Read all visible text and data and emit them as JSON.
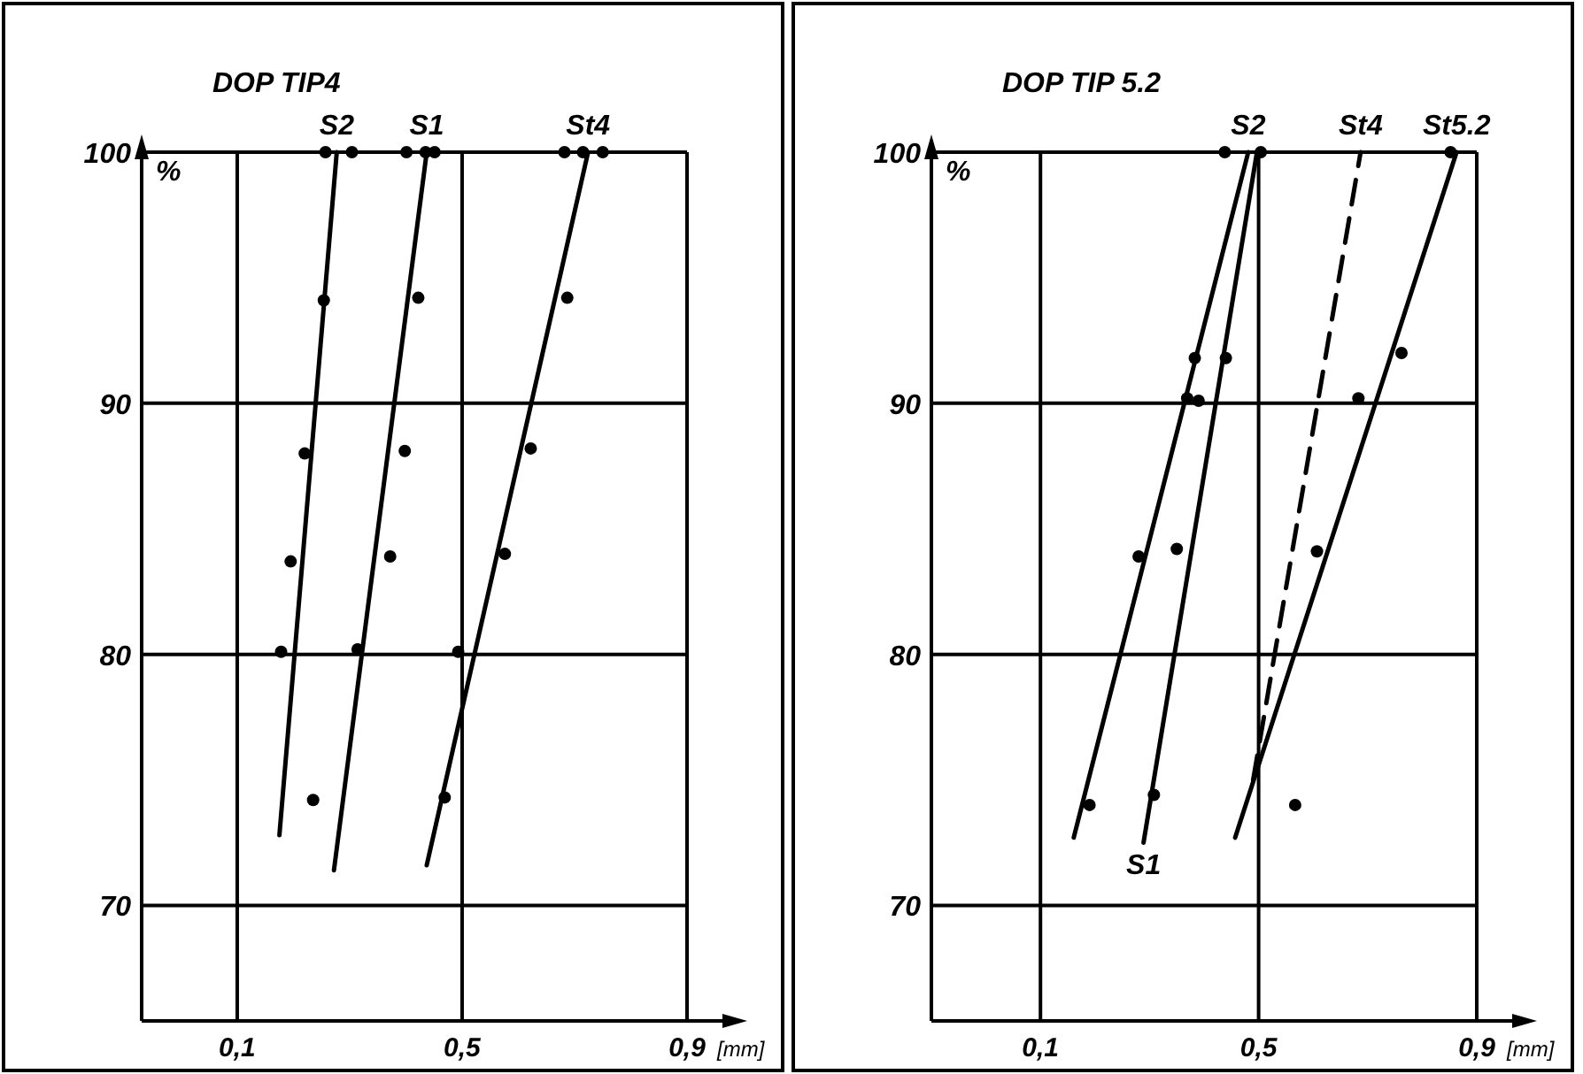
{
  "chart_data": [
    {
      "type": "scatter",
      "title": "DOP TIP4",
      "xlabel": "[mm]",
      "ylabel": "%",
      "xlim": [
        -0.07,
        0.9
      ],
      "ylim": [
        65.4,
        100
      ],
      "xticks": [
        {
          "value": 0.1,
          "label": "0,1"
        },
        {
          "value": 0.5,
          "label": "0,5"
        },
        {
          "value": 0.9,
          "label": "0,9"
        }
      ],
      "yticks": [
        70,
        80,
        90,
        100
      ],
      "grid": true,
      "marker": "circle",
      "series": [
        {
          "type": "scatter",
          "color": "#000000",
          "x": [
            0.257,
            0.304,
            0.254,
            0.22,
            0.195,
            0.178,
            0.235
          ],
          "values": [
            100,
            100,
            94.1,
            88.0,
            83.7,
            80.1,
            74.2
          ]
        },
        {
          "type": "scatter",
          "color": "#000000",
          "x": [
            0.401,
            0.435,
            0.451,
            0.422,
            0.398,
            0.372,
            0.314
          ],
          "values": [
            100,
            100,
            100,
            94.2,
            88.1,
            83.9,
            80.2
          ]
        },
        {
          "type": "scatter",
          "color": "#000000",
          "x": [
            0.682,
            0.715,
            0.75,
            0.687,
            0.622,
            0.576,
            0.493,
            0.469
          ],
          "values": [
            100,
            100,
            100,
            94.2,
            88.2,
            84.0,
            80.1,
            74.3
          ]
        },
        {
          "type": "line",
          "name": "S2",
          "color": "#000000",
          "marker": "none",
          "line_style": "solid",
          "x": [
            0.175,
            0.277
          ],
          "values": [
            72.8,
            100
          ]
        },
        {
          "type": "line",
          "name": "S1",
          "color": "#000000",
          "marker": "none",
          "line_style": "solid",
          "x": [
            0.272,
            0.437
          ],
          "values": [
            71.4,
            100
          ]
        },
        {
          "type": "line",
          "name": "St4",
          "color": "#000000",
          "marker": "none",
          "line_style": "solid",
          "x": [
            0.437,
            0.724
          ],
          "values": [
            71.6,
            100
          ]
        }
      ]
    },
    {
      "type": "scatter",
      "title": "DOP TIP 5.2",
      "xlabel": "[mm]",
      "ylabel": "%",
      "xlim": [
        -0.1,
        0.9
      ],
      "ylim": [
        65.4,
        100
      ],
      "xticks": [
        {
          "value": 0.1,
          "label": "0,1"
        },
        {
          "value": 0.5,
          "label": "0,5"
        },
        {
          "value": 0.9,
          "label": "0,9"
        }
      ],
      "yticks": [
        70,
        80,
        90,
        100
      ],
      "grid": true,
      "marker": "circle",
      "series": [
        {
          "type": "scatter",
          "color": "#000000",
          "x": [
            0.438,
            0.383,
            0.369,
            0.28,
            0.19
          ],
          "values": [
            100,
            91.8,
            90.2,
            83.9,
            74.0
          ]
        },
        {
          "type": "scatter",
          "color": "#000000",
          "x": [
            0.504,
            0.44,
            0.39,
            0.35,
            0.308
          ],
          "values": [
            100,
            91.8,
            90.1,
            84.2,
            74.4
          ]
        },
        {
          "type": "scatter",
          "color": "#000000",
          "x": [
            0.852,
            0.762,
            0.683,
            0.607,
            0.567
          ],
          "values": [
            100,
            92.0,
            90.2,
            84.1,
            74.0
          ]
        },
        {
          "type": "line",
          "name": "S2",
          "color": "#000000",
          "marker": "none",
          "line_style": "solid",
          "x": [
            0.161,
            0.481
          ],
          "values": [
            72.7,
            100
          ]
        },
        {
          "type": "line",
          "name": "S1",
          "color": "#000000",
          "marker": "none",
          "line_style": "solid",
          "x": [
            0.289,
            0.497
          ],
          "values": [
            72.5,
            100
          ]
        },
        {
          "type": "line",
          "name": "St4",
          "color": "#000000",
          "marker": "none",
          "line_style": "dashed",
          "x": [
            0.49,
            0.687
          ],
          "values": [
            75.0,
            100
          ]
        },
        {
          "type": "line",
          "name": "St5.2",
          "color": "#000000",
          "marker": "none",
          "line_style": "solid",
          "x": [
            0.457,
            0.863
          ],
          "values": [
            72.7,
            100
          ]
        }
      ]
    }
  ]
}
